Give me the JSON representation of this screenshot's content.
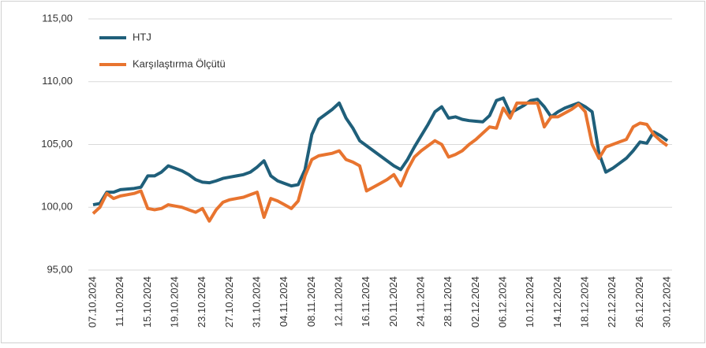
{
  "chart_data": {
    "type": "line",
    "categories": [
      "07.10.2024",
      null,
      null,
      null,
      "11.10.2024",
      null,
      null,
      null,
      "15.10.2024",
      null,
      null,
      null,
      "19.10.2024",
      null,
      null,
      null,
      "23.10.2024",
      null,
      null,
      null,
      "27.10.2024",
      null,
      null,
      null,
      "31.10.2024",
      null,
      null,
      null,
      "04.11.2024",
      null,
      null,
      null,
      "08.11.2024",
      null,
      null,
      null,
      "12.11.2024",
      null,
      null,
      null,
      "16.11.2024",
      null,
      null,
      null,
      "20.11.2024",
      null,
      null,
      null,
      "24.11.2024",
      null,
      null,
      null,
      "28.11.2024",
      null,
      null,
      null,
      "02.12.2024",
      null,
      null,
      null,
      "06.12.2024",
      null,
      null,
      null,
      "10.12.2024",
      null,
      null,
      null,
      "14.12.2024",
      null,
      null,
      null,
      "18.12.2024",
      null,
      null,
      null,
      "22.12.2024",
      null,
      null,
      null,
      "26.12.2024",
      null,
      null,
      null,
      "30.12.2024"
    ],
    "series": [
      {
        "name": "HTJ",
        "color": "#1f5f7a",
        "values": [
          100.2,
          100.3,
          101.2,
          101.2,
          101.4,
          101.45,
          101.5,
          101.6,
          102.5,
          102.5,
          102.8,
          103.3,
          103.1,
          102.9,
          102.6,
          102.2,
          102.0,
          101.95,
          102.1,
          102.3,
          102.4,
          102.5,
          102.6,
          102.8,
          103.2,
          103.7,
          102.5,
          102.1,
          101.9,
          101.7,
          101.8,
          103.0,
          105.8,
          107.0,
          107.4,
          107.8,
          108.3,
          107.1,
          106.3,
          105.3,
          104.9,
          104.5,
          104.1,
          103.7,
          103.3,
          103.0,
          103.8,
          104.8,
          105.7,
          106.6,
          107.6,
          108.0,
          107.1,
          107.2,
          107.0,
          106.9,
          106.85,
          106.8,
          107.3,
          108.5,
          108.7,
          107.5,
          107.8,
          108.1,
          108.5,
          108.6,
          108.0,
          107.2,
          107.6,
          107.9,
          108.1,
          108.3,
          108.0,
          107.6,
          104.3,
          102.8,
          103.1,
          103.5,
          103.9,
          104.5,
          105.2,
          105.1,
          106.0,
          105.7,
          105.3
        ]
      },
      {
        "name": "Karşılaştırma Ölçütü",
        "color": "#e8742f",
        "values": [
          99.5,
          100.0,
          101.1,
          100.7,
          100.9,
          101.0,
          101.1,
          101.3,
          99.9,
          99.8,
          99.9,
          100.2,
          100.1,
          100.0,
          99.8,
          99.6,
          99.9,
          98.9,
          99.8,
          100.4,
          100.6,
          100.7,
          100.8,
          101.0,
          101.2,
          99.2,
          100.7,
          100.5,
          100.2,
          99.9,
          100.5,
          102.5,
          103.8,
          104.1,
          104.2,
          104.3,
          104.5,
          103.8,
          103.6,
          103.3,
          101.3,
          101.6,
          101.9,
          102.2,
          102.6,
          101.7,
          103.0,
          104.0,
          104.5,
          104.9,
          105.3,
          105.0,
          104.0,
          104.2,
          104.5,
          105.0,
          105.4,
          105.9,
          106.4,
          106.3,
          107.9,
          107.1,
          108.3,
          108.3,
          108.3,
          108.3,
          106.4,
          107.2,
          107.2,
          107.5,
          107.8,
          108.2,
          107.6,
          105.0,
          103.9,
          104.8,
          105.0,
          105.2,
          105.4,
          106.4,
          106.7,
          106.6,
          105.8,
          105.3,
          104.9
        ]
      }
    ],
    "ylim": [
      95,
      115
    ],
    "yticks": [
      {
        "value": 95,
        "label": "95,00"
      },
      {
        "value": 100,
        "label": "100,00"
      },
      {
        "value": 105,
        "label": "105,00"
      },
      {
        "value": 110,
        "label": "110,00"
      },
      {
        "value": 115,
        "label": "115,00"
      }
    ],
    "grid": true,
    "legend": "top-left"
  }
}
